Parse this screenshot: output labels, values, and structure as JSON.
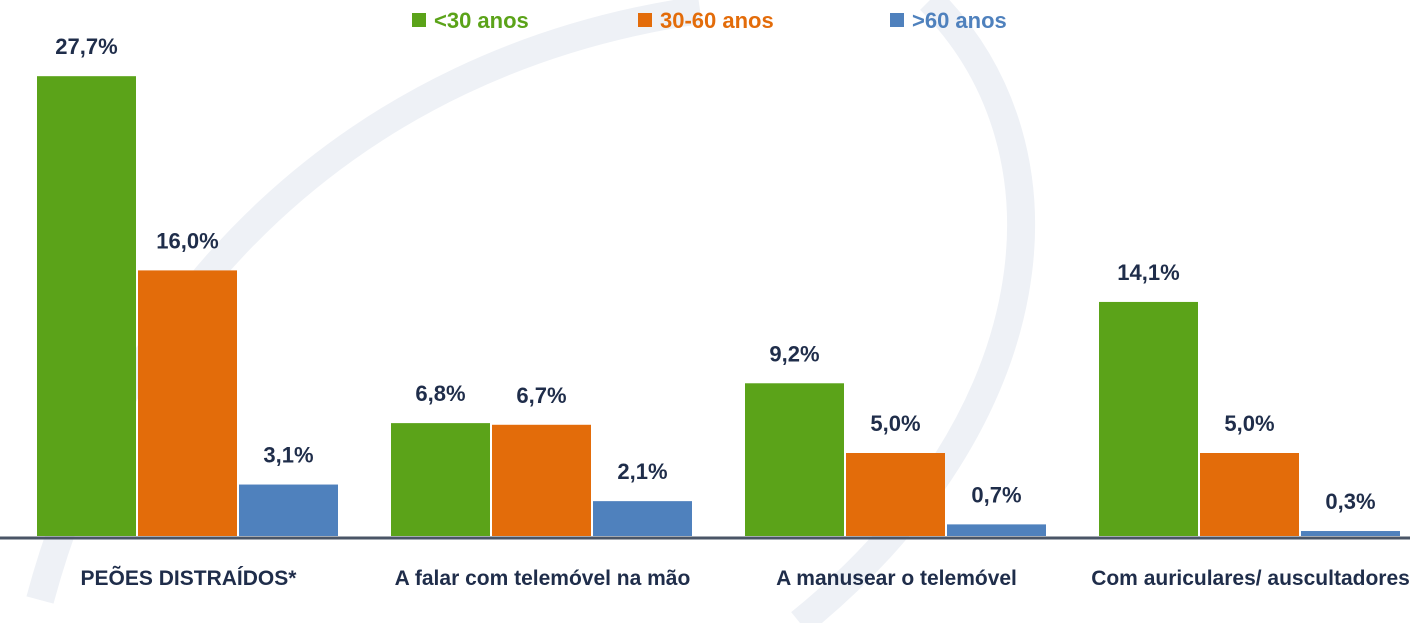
{
  "chart_data": {
    "type": "bar",
    "categories": [
      "PEÕES DISTRAÍDOS*",
      "A falar com telemóvel na mão",
      "A manusear o telemóvel",
      "Com auriculares/ auscultadores"
    ],
    "series": [
      {
        "name": "<30 anos",
        "color": "#5ba319",
        "values": [
          27.7,
          6.8,
          9.2,
          14.1
        ],
        "value_labels": [
          "27,7%",
          "6,8%",
          "9,2%",
          "14,1%"
        ]
      },
      {
        "name": "30-60 anos",
        "color": "#e36c0a",
        "values": [
          16.0,
          6.7,
          5.0,
          5.0
        ],
        "value_labels": [
          "16,0%",
          "6,7%",
          "5,0%",
          "5,0%"
        ]
      },
      {
        "name": ">60 anos",
        "color": "#4f81bd",
        "values": [
          3.1,
          2.1,
          0.7,
          0.3
        ],
        "value_labels": [
          "3,1%",
          "2,1%",
          "0,7%",
          "0,3%"
        ]
      }
    ]
  }
}
